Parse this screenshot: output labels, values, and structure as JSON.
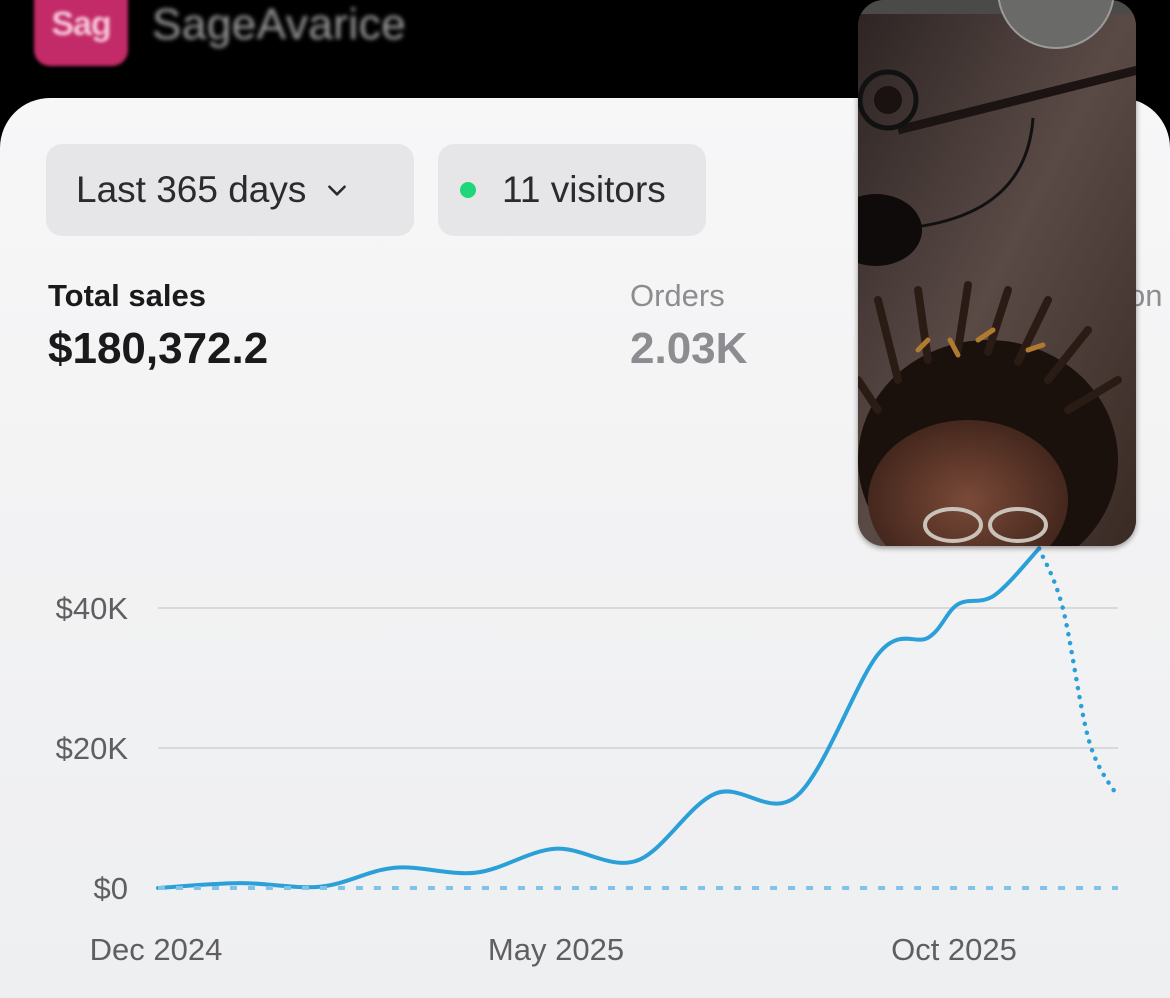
{
  "header": {
    "logo_text": "Sag",
    "store_name": "SageAvarice",
    "logo_color": "#c22a68"
  },
  "filters": {
    "date_range": "Last 365 days",
    "dropdown_icon": "chevron-down-icon",
    "visitors": "11 visitors",
    "live_indicator_color": "#1fd67a"
  },
  "metrics": {
    "total_sales_label": "Total sales",
    "total_sales_value": "$180,372.2",
    "orders_label": "Orders",
    "orders_value": "2.03K",
    "cut_label": "on"
  },
  "video_overlay": {
    "description_icon": "camera-feed"
  },
  "chart_data": {
    "type": "line",
    "title": "",
    "xlabel": "",
    "ylabel": "",
    "ylim": [
      0,
      40000
    ],
    "y_ticks": [
      {
        "value": 0,
        "label": "$0"
      },
      {
        "value": 20000,
        "label": "$20K"
      },
      {
        "value": 40000,
        "label": "$40K"
      }
    ],
    "x_ticks": [
      "Dec 2024",
      "May 2025",
      "Oct 2025"
    ],
    "grid": true,
    "series": [
      {
        "style": "solid",
        "color": "#2a9fd8",
        "x": [
          "2024-12-01",
          "2025-01-01",
          "2025-02-01",
          "2025-03-01",
          "2025-04-01",
          "2025-05-01",
          "2025-06-01",
          "2025-07-01",
          "2025-08-01",
          "2025-09-01",
          "2025-09-20",
          "2025-10-01",
          "2025-10-15",
          "2025-11-01"
        ],
        "values": [
          0,
          700,
          200,
          2900,
          2200,
          5600,
          3900,
          13500,
          13200,
          33500,
          35800,
          40500,
          41800,
          48500
        ]
      },
      {
        "style": "dotted",
        "color": "#2a9fd8",
        "x": [
          "2025-11-01",
          "2025-11-10",
          "2025-11-20",
          "2025-12-01"
        ],
        "values": [
          48500,
          40000,
          21000,
          13000
        ]
      },
      {
        "style": "dashed",
        "color": "#7fc3e8",
        "x": [
          "2024-12-01",
          "2025-12-01"
        ],
        "values": [
          0,
          0
        ]
      }
    ]
  }
}
